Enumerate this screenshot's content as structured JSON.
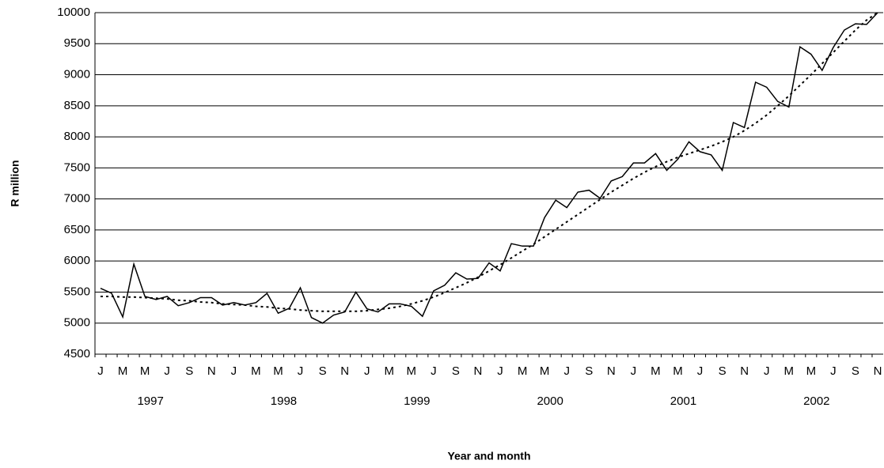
{
  "chart_data": {
    "type": "line",
    "y_label": "R million",
    "x_label": "Year and month",
    "categories": [
      "J",
      null,
      "M",
      null,
      "M",
      null,
      "J",
      null,
      "S",
      null,
      "N",
      null,
      "J",
      null,
      "M",
      null,
      "M",
      null,
      "J",
      null,
      "S",
      null,
      "N",
      null,
      "J",
      null,
      "M",
      null,
      "M",
      null,
      "J",
      null,
      "S",
      null,
      "N",
      null,
      "J",
      null,
      "M",
      null,
      "M",
      null,
      "J",
      null,
      "S",
      null,
      "N",
      null,
      "J",
      null,
      "M",
      null,
      "M",
      null,
      "J",
      null,
      "S",
      null,
      "N",
      null,
      "J",
      null,
      "M",
      null,
      "M",
      null,
      "J",
      null,
      "S",
      null,
      "N"
    ],
    "year_labels": [
      "1997",
      "1998",
      "1999",
      "2000",
      "2001",
      "2002"
    ],
    "series": [
      {
        "color": "#000000",
        "values": [
          5560,
          5480,
          5100,
          5950,
          5430,
          5380,
          5430,
          5280,
          5330,
          5410,
          5410,
          5290,
          5330,
          5290,
          5330,
          5480,
          5160,
          5240,
          5570,
          5090,
          5000,
          5130,
          5180,
          5500,
          5230,
          5180,
          5310,
          5310,
          5270,
          5110,
          5520,
          5610,
          5810,
          5710,
          5720,
          5970,
          5840,
          6280,
          6240,
          6240,
          6700,
          6980,
          6860,
          7110,
          7140,
          7010,
          7290,
          7360,
          7580,
          7580,
          7730,
          7460,
          7640,
          7920,
          7760,
          7710,
          7460,
          8230,
          8150,
          8880,
          8800,
          8570,
          8480,
          9450,
          9330,
          9070,
          9440,
          9720,
          9820,
          9810,
          10000
        ]
      },
      {
        "color": "#000000",
        "dash": true,
        "values": [
          5430,
          5430,
          5420,
          5420,
          5410,
          5400,
          5390,
          5370,
          5360,
          5340,
          5330,
          5310,
          5300,
          5290,
          5270,
          5260,
          5240,
          5230,
          5210,
          5200,
          5190,
          5190,
          5190,
          5190,
          5200,
          5220,
          5240,
          5270,
          5310,
          5360,
          5420,
          5490,
          5570,
          5650,
          5740,
          5840,
          5940,
          6050,
          6160,
          6270,
          6390,
          6510,
          6630,
          6750,
          6870,
          6990,
          7110,
          7220,
          7330,
          7430,
          7520,
          7600,
          7670,
          7730,
          7790,
          7850,
          7920,
          8000,
          8100,
          8220,
          8350,
          8500,
          8660,
          8830,
          9000,
          9180,
          9360,
          9540,
          9720,
          9880,
          10000
        ]
      }
    ],
    "ylim": [
      4500,
      10000
    ],
    "yticks": [
      4500,
      5000,
      5500,
      6000,
      6500,
      7000,
      7500,
      8000,
      8500,
      9000,
      9500,
      10000
    ],
    "grid": true
  }
}
